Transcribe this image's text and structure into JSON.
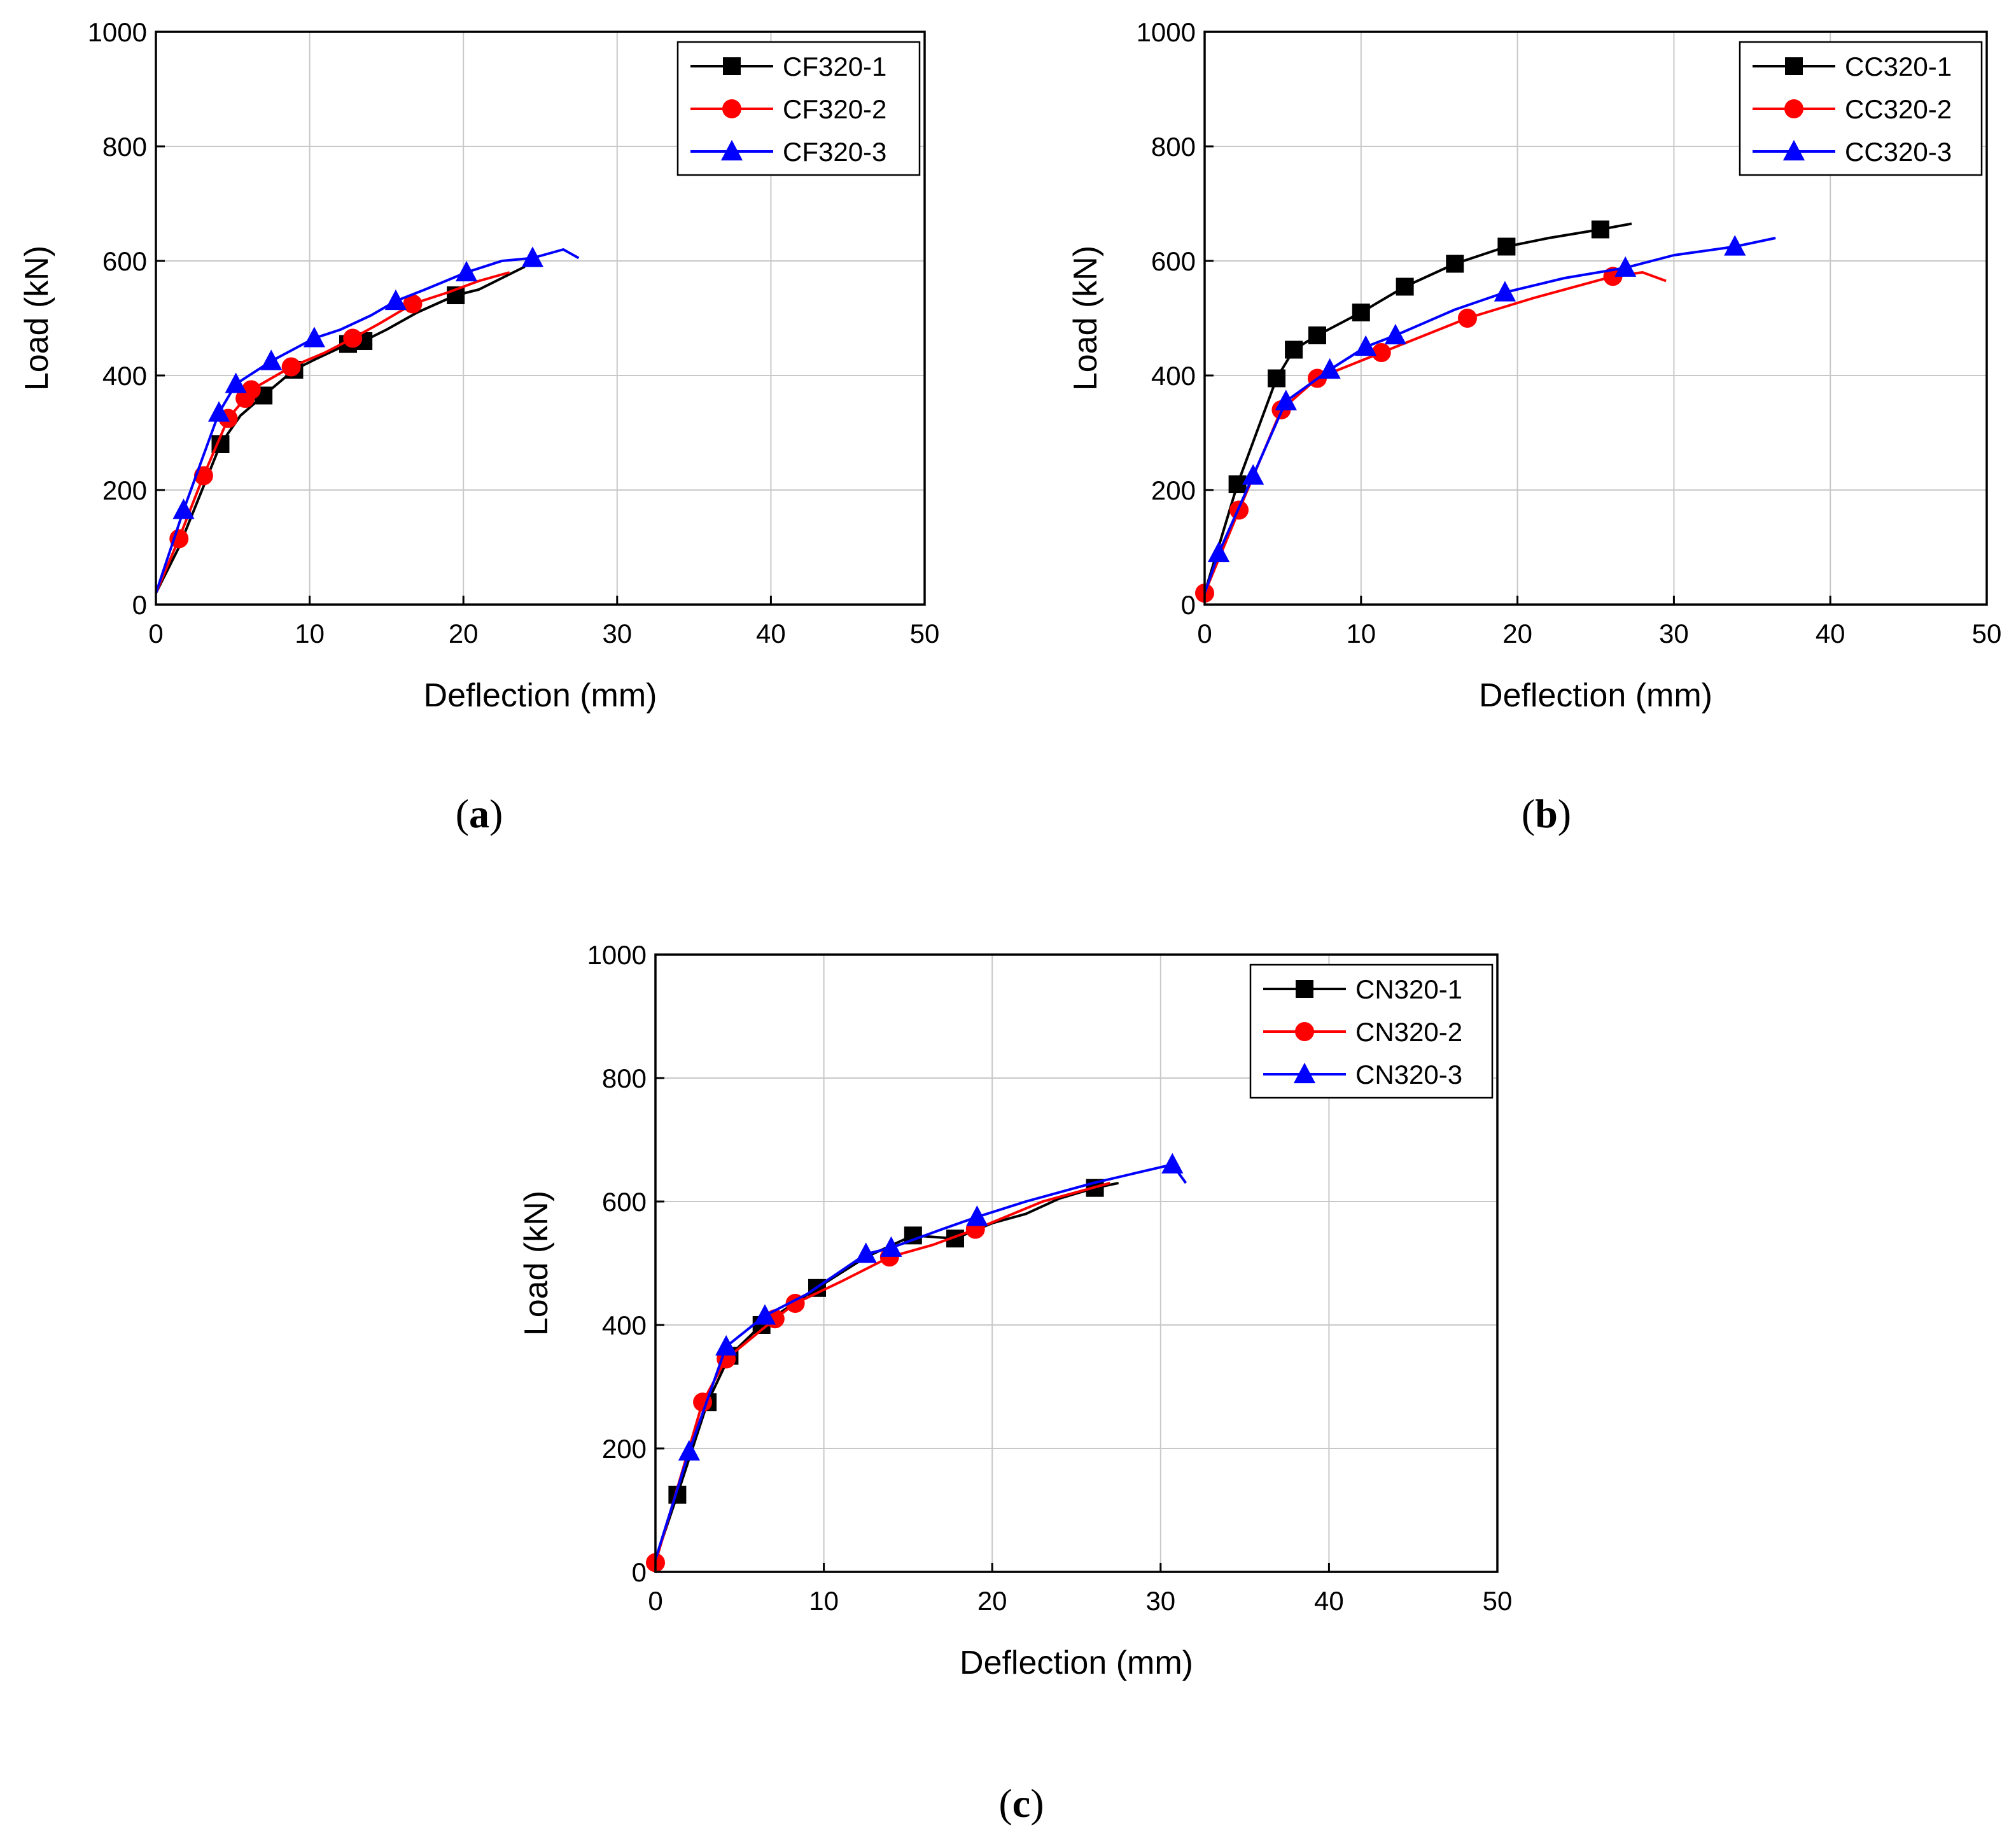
{
  "chart_data": [
    {
      "type": "line",
      "caption": "a",
      "xlabel": "Deflection (mm)",
      "ylabel": "Load (kN)",
      "xlim": [
        0,
        50
      ],
      "ylim": [
        0,
        1000
      ],
      "xticks": [
        0,
        10,
        20,
        30,
        40,
        50
      ],
      "yticks": [
        0,
        200,
        400,
        600,
        800,
        1000
      ],
      "grid": true,
      "legend_position": "top-right",
      "series": [
        {
          "name": "CF320-1",
          "color": "#000000",
          "marker": "square",
          "x": [
            0,
            1.5,
            3,
            4.2,
            5.5,
            7,
            9,
            10.5,
            12.5,
            13.5,
            15,
            17,
            19.5,
            21,
            22.5,
            24
          ],
          "y": [
            20,
            100,
            200,
            280,
            330,
            365,
            410,
            430,
            455,
            460,
            480,
            510,
            540,
            550,
            570,
            590
          ],
          "marker_x": [
            4.2,
            7,
            9,
            12.5,
            13.5,
            19.5
          ],
          "marker_y": [
            280,
            365,
            410,
            455,
            460,
            540
          ]
        },
        {
          "name": "CF320-2",
          "color": "#ff0000",
          "marker": "circle",
          "x": [
            0,
            1.5,
            3.1,
            4.7,
            5.8,
            6.2,
            8.8,
            11,
            12.8,
            14.5,
            16.7,
            19,
            21,
            23
          ],
          "y": [
            20,
            115,
            225,
            325,
            360,
            375,
            415,
            440,
            465,
            490,
            525,
            545,
            565,
            580
          ],
          "marker_x": [
            1.5,
            3.1,
            4.7,
            5.8,
            6.2,
            8.8,
            12.8,
            16.7
          ],
          "marker_y": [
            115,
            225,
            325,
            360,
            375,
            415,
            465,
            525
          ]
        },
        {
          "name": "CF320-3",
          "color": "#0000ff",
          "marker": "triangle",
          "x": [
            0,
            1.8,
            4.1,
            5.2,
            7.5,
            10.3,
            12,
            14,
            15.6,
            17.5,
            20.2,
            22.5,
            24.5,
            26.5,
            27.5
          ],
          "y": [
            20,
            165,
            335,
            385,
            425,
            465,
            480,
            505,
            530,
            550,
            580,
            600,
            605,
            620,
            605
          ],
          "marker_x": [
            1.8,
            4.1,
            5.2,
            7.5,
            10.3,
            15.6,
            20.2,
            24.5
          ],
          "marker_y": [
            165,
            335,
            385,
            425,
            465,
            530,
            580,
            605
          ]
        }
      ]
    },
    {
      "type": "line",
      "caption": "b",
      "xlabel": "Deflection (mm)",
      "ylabel": "Load (kN)",
      "xlim": [
        0,
        50
      ],
      "ylim": [
        0,
        1000
      ],
      "xticks": [
        0,
        10,
        20,
        30,
        40,
        50
      ],
      "yticks": [
        0,
        200,
        400,
        600,
        800,
        1000
      ],
      "grid": true,
      "legend_position": "top-right",
      "series": [
        {
          "name": "CC320-1",
          "color": "#000000",
          "marker": "square",
          "x": [
            0,
            2.1,
            4.6,
            5.7,
            7.2,
            10,
            12.8,
            16,
            19.3,
            22,
            25.3,
            27.3
          ],
          "y": [
            20,
            210,
            395,
            445,
            470,
            510,
            555,
            595,
            625,
            640,
            655,
            665
          ],
          "marker_x": [
            2.1,
            4.6,
            5.7,
            7.2,
            10,
            12.8,
            16,
            19.3,
            25.3
          ],
          "marker_y": [
            210,
            395,
            445,
            470,
            510,
            555,
            595,
            625,
            655
          ]
        },
        {
          "name": "CC320-2",
          "color": "#ff0000",
          "marker": "circle",
          "x": [
            0,
            2.2,
            4.9,
            7.2,
            11.3,
            16.8,
            21,
            26.1,
            28,
            29.5
          ],
          "y": [
            20,
            165,
            340,
            395,
            440,
            500,
            535,
            573,
            580,
            565
          ],
          "marker_x": [
            0,
            2.2,
            4.9,
            7.2,
            11.3,
            16.8,
            26.1
          ],
          "marker_y": [
            20,
            165,
            340,
            395,
            440,
            500,
            573
          ]
        },
        {
          "name": "CC320-3",
          "color": "#0000ff",
          "marker": "triangle",
          "x": [
            0,
            0.9,
            3.1,
            5.2,
            8,
            10.3,
            12.2,
            16,
            19.2,
            23,
            26.9,
            30,
            33.9,
            36.5
          ],
          "y": [
            20,
            90,
            225,
            355,
            410,
            450,
            470,
            515,
            545,
            570,
            588,
            610,
            625,
            640
          ],
          "marker_x": [
            0.9,
            3.1,
            5.2,
            8,
            10.3,
            12.2,
            19.2,
            26.9,
            33.9
          ],
          "marker_y": [
            90,
            225,
            355,
            410,
            450,
            470,
            545,
            588,
            625
          ]
        }
      ]
    },
    {
      "type": "line",
      "caption": "c",
      "xlabel": "Deflection (mm)",
      "ylabel": "Load (kN)",
      "xlim": [
        0,
        50
      ],
      "ylim": [
        0,
        1000
      ],
      "xticks": [
        0,
        10,
        20,
        30,
        40,
        50
      ],
      "yticks": [
        0,
        200,
        400,
        600,
        800,
        1000
      ],
      "grid": true,
      "legend_position": "top-right",
      "series": [
        {
          "name": "CN320-1",
          "color": "#000000",
          "marker": "square",
          "x": [
            0,
            1.3,
            3.1,
            4.4,
            6.3,
            9.6,
            12.5,
            15.3,
            17.8,
            20,
            22,
            24,
            26.1,
            27.5
          ],
          "y": [
            20,
            125,
            275,
            350,
            400,
            460,
            510,
            545,
            540,
            565,
            580,
            605,
            622,
            630
          ],
          "marker_x": [
            1.3,
            3.1,
            4.4,
            6.3,
            9.6,
            15.3,
            17.8,
            26.1
          ],
          "marker_y": [
            125,
            275,
            350,
            400,
            460,
            545,
            540,
            622
          ]
        },
        {
          "name": "CN320-2",
          "color": "#ff0000",
          "marker": "circle",
          "x": [
            0,
            2.8,
            4.2,
            7.1,
            8.3,
            11,
            13.9,
            16.5,
            19,
            23,
            27
          ],
          "y": [
            15,
            275,
            345,
            410,
            435,
            470,
            510,
            530,
            555,
            600,
            630
          ],
          "marker_x": [
            0,
            2.8,
            4.2,
            7.1,
            8.3,
            13.9,
            19
          ],
          "marker_y": [
            15,
            275,
            345,
            410,
            435,
            510,
            555
          ]
        },
        {
          "name": "CN320-3",
          "color": "#0000ff",
          "marker": "triangle",
          "x": [
            0,
            2,
            4.2,
            6.5,
            9,
            12.5,
            14,
            17,
            19.1,
            22,
            26,
            30.7,
            31.5
          ],
          "y": [
            20,
            195,
            365,
            415,
            450,
            515,
            525,
            555,
            575,
            600,
            630,
            660,
            630
          ],
          "marker_x": [
            2,
            4.2,
            6.5,
            12.5,
            14,
            19.1,
            30.7
          ],
          "marker_y": [
            195,
            365,
            415,
            515,
            525,
            575,
            660
          ]
        }
      ]
    }
  ]
}
